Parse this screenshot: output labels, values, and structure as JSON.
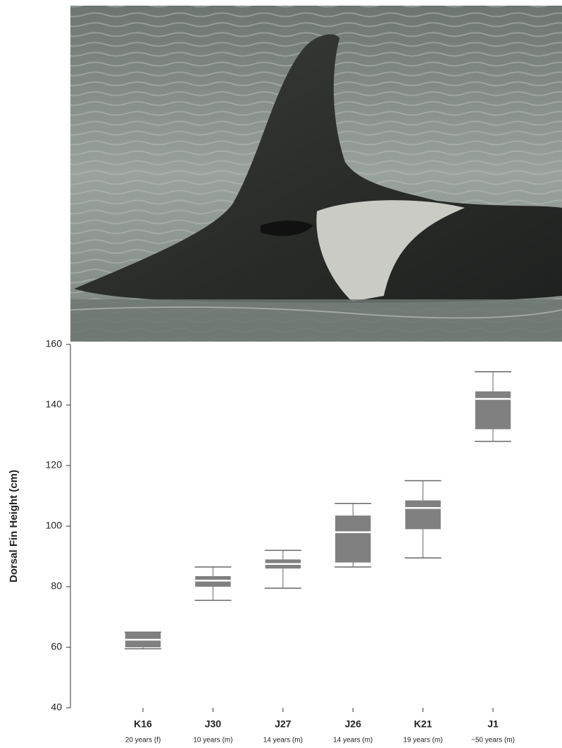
{
  "chart_data": {
    "type": "box",
    "y_label": "Dorsal Fin Height (cm)",
    "categories": [
      "K16",
      "J30",
      "J27",
      "J26",
      "K21",
      "J1"
    ],
    "sublabels": [
      "20 years (f)",
      "10 years (m)",
      "14 years (m)",
      "14 years (m)",
      "19 years (m)",
      "~50 years (m)"
    ],
    "min": [
      59.5,
      75.5,
      79.5,
      86.5,
      89.5,
      128
    ],
    "q1": [
      60,
      80,
      86,
      88,
      99,
      132
    ],
    "median": [
      62.5,
      82,
      87.5,
      98,
      106,
      142
    ],
    "q3": [
      65,
      83.5,
      89,
      103.5,
      108.5,
      144.5
    ],
    "max": [
      65,
      86.5,
      92,
      107.5,
      115,
      151
    ],
    "color": "#808080",
    "median_color": "#ffffff",
    "ylim": [
      40,
      160
    ],
    "yticks": [
      40,
      60,
      80,
      100,
      120,
      140,
      160
    ]
  }
}
